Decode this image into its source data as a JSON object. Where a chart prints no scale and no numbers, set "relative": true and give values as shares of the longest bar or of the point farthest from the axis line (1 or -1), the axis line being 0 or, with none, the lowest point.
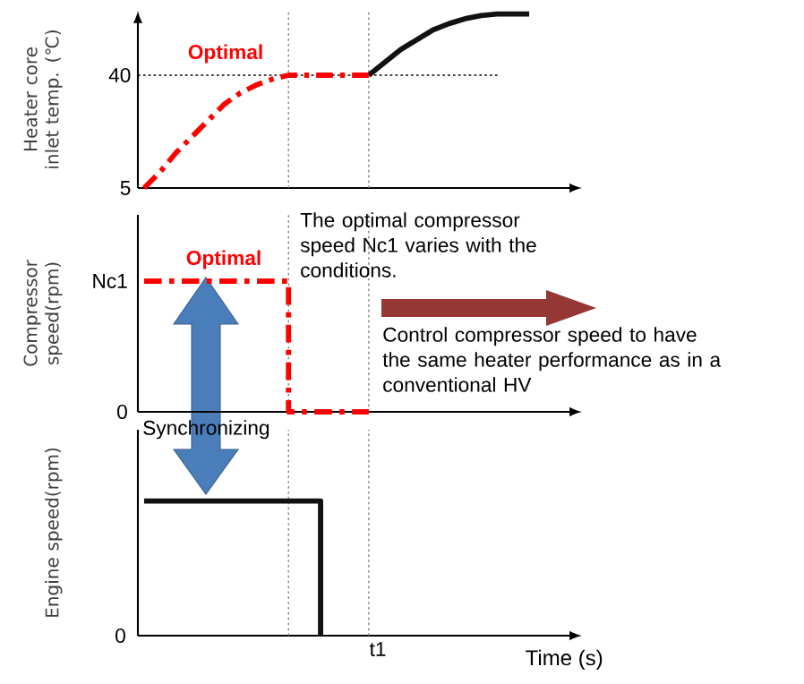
{
  "chart_data": [
    {
      "type": "line",
      "ylabel": "Heater core inlet temp. (℃)",
      "categories": [
        null,
        null,
        null,
        null,
        null,
        null,
        null,
        null,
        null,
        null,
        null,
        null,
        null,
        null,
        null,
        null,
        null,
        null,
        null,
        null,
        null,
        null,
        null,
        null,
        null
      ],
      "ylim": [
        5,
        60
      ],
      "yticks": [
        5,
        40
      ],
      "tick_labels": "y",
      "series": [
        {
          "color": "#111111",
          "line_style": "solid",
          "values": [
            null,
            null,
            null,
            null,
            null,
            null,
            null,
            null,
            null,
            null,
            null,
            null,
            null,
            null,
            40,
            44,
            48,
            51,
            54,
            56,
            57.5,
            58.5,
            59,
            59,
            59
          ]
        },
        {
          "color": "#ff0000",
          "line_style": "dashed",
          "values": [
            5,
            10,
            16,
            21,
            26,
            31,
            34.5,
            37,
            38.8,
            40,
            40,
            40,
            40,
            40,
            40,
            null,
            null,
            null,
            null,
            null,
            null,
            null,
            null,
            null,
            null
          ]
        }
      ],
      "ref_lines": [
        {
          "axis": "y",
          "value": 40,
          "color": "#000000",
          "line_style": "dotted"
        }
      ],
      "annotations": [
        "Optimal"
      ]
    },
    {
      "type": "step",
      "relative": true,
      "ylabel": "Compressor speed(rpm)",
      "categories": [
        null,
        null,
        null,
        null,
        null,
        null,
        null,
        null,
        null,
        null,
        null,
        null,
        null,
        null,
        null,
        null,
        null,
        null,
        null,
        null,
        null,
        null,
        null,
        null,
        null
      ],
      "tick_labels": false,
      "series": [
        {
          "color": "#ff0000",
          "line_style": "dashed",
          "values": [
            1,
            1,
            1,
            1,
            1,
            1,
            1,
            1,
            1,
            0,
            0,
            0,
            0,
            0,
            0,
            null,
            null,
            null,
            null,
            null,
            null,
            null,
            null,
            null,
            null
          ]
        }
      ],
      "annotations": [
        "Optimal",
        "The optimal compressor speed Nc1 varies with the conditions.",
        "Control compressor speed to have the same heater performance as in a conventional HV",
        "Synchronizing",
        "Nc1",
        "0"
      ]
    },
    {
      "type": "step",
      "relative": true,
      "ylabel": "Engine speed(rpm)",
      "xlabel": "Time (s)",
      "categories": [
        null,
        null,
        null,
        null,
        null,
        null,
        null,
        null,
        null,
        null,
        null,
        null,
        null,
        null,
        null,
        null,
        null,
        null,
        null,
        null,
        null,
        null,
        null,
        null,
        null
      ],
      "tick_labels": false,
      "series": [
        {
          "color": "#111111",
          "line_style": "solid",
          "values": [
            1,
            1,
            1,
            1,
            1,
            1,
            1,
            1,
            1,
            1,
            1,
            0,
            null,
            null,
            null,
            null,
            null,
            null,
            null,
            null,
            null,
            null,
            null,
            null,
            null
          ]
        }
      ],
      "annotations": [
        "0",
        "t1"
      ]
    }
  ]
}
